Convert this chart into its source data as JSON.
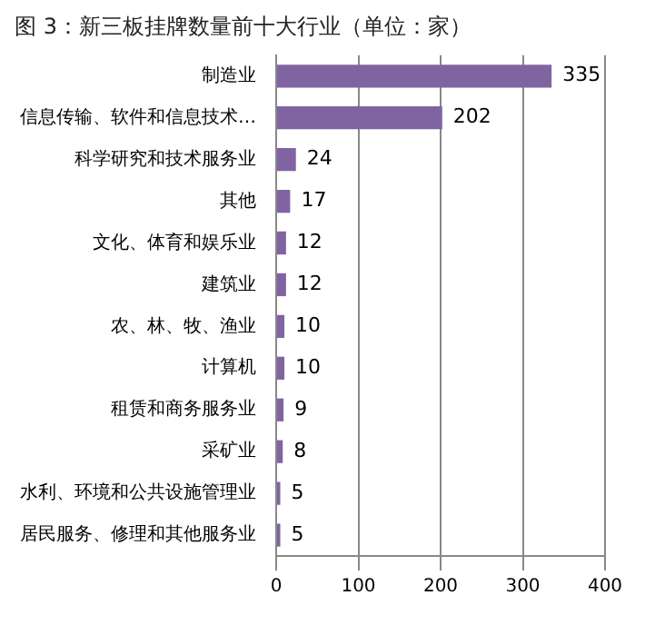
{
  "chart_data": {
    "type": "bar",
    "orientation": "horizontal",
    "title": "图 3：新三板挂牌数量前十大行业（单位：家）",
    "categories": [
      "制造业",
      "信息传输、软件和信息技术…",
      "科学研究和技术服务业",
      "其他",
      "文化、体育和娱乐业",
      "建筑业",
      "农、林、牧、渔业",
      "计算机",
      "租赁和商务服务业",
      "采矿业",
      "水利、环境和公共设施管理业",
      "居民服务、修理和其他服务业"
    ],
    "values": [
      335,
      202,
      24,
      17,
      12,
      12,
      10,
      10,
      9,
      8,
      5,
      5
    ],
    "color": "#8064a2",
    "xlim": [
      0,
      400
    ],
    "xticks": [
      0,
      100,
      200,
      300,
      400
    ],
    "grid": "x",
    "data_labels": true,
    "legend": false
  }
}
